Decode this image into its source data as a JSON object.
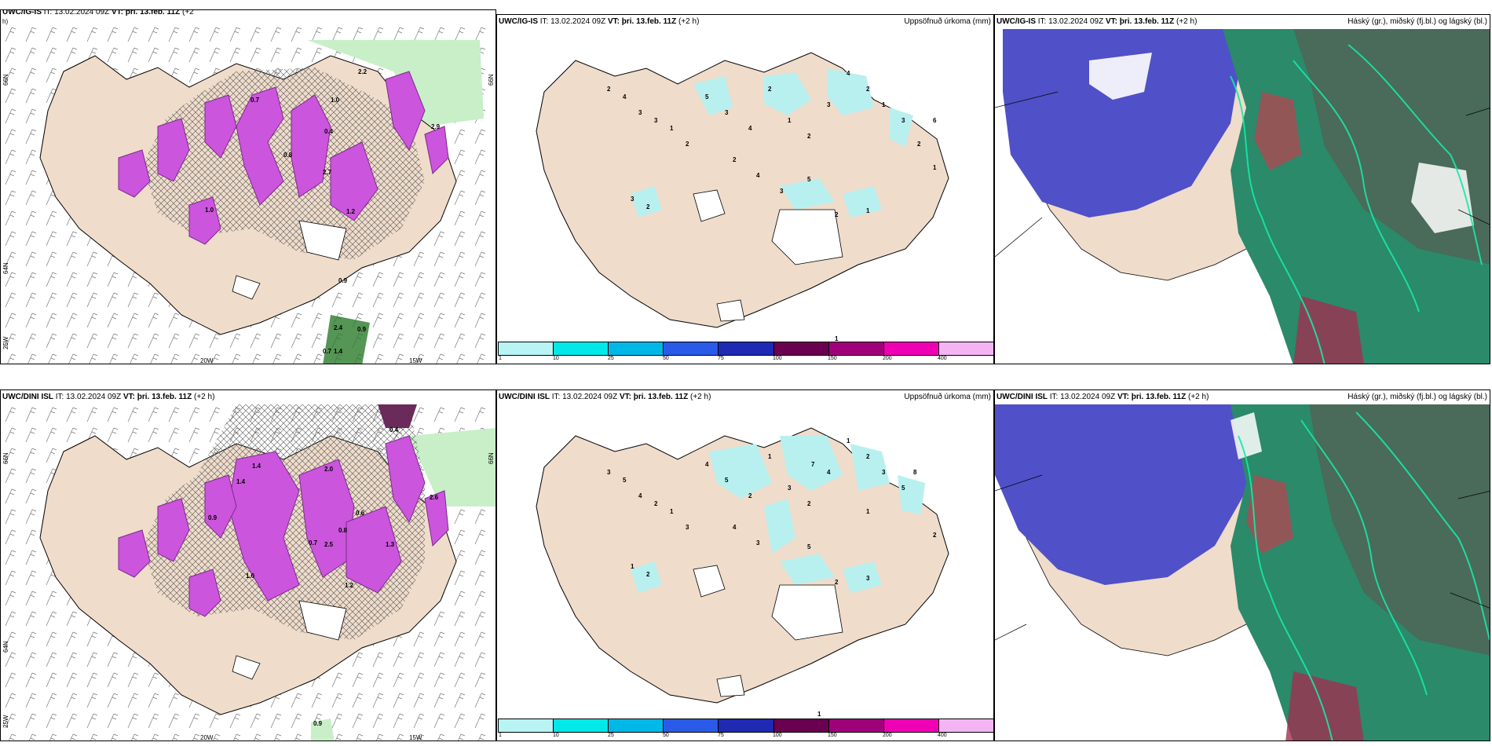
{
  "rows": [
    {
      "model": "UWC/IG-IS",
      "wind_header": {
        "model": "UWC/IG-IS",
        "it_label": "IT:",
        "it": "13.02.2024 09Z",
        "vt_label": "VT:",
        "vt": "þri. 13.feb. 11Z",
        "lead": "(+2",
        "lead2": "h)"
      },
      "precip_header": {
        "model": "UWC/IG-IS",
        "it_label": "IT:",
        "it": "13.02.2024 09Z",
        "vt_label": "VT:",
        "vt": "þri. 13.feb. 11Z",
        "lead": "(+2 h)",
        "right": "Uppsöfnuð úrkoma (mm)"
      },
      "cloud_header": {
        "model": "UWC/IG-IS",
        "it_label": "IT:",
        "it": "13.02.2024 09Z",
        "vt_label": "VT:",
        "vt": "þri. 13.feb. 11Z",
        "lead": "(+2 h)",
        "right": "Háský (gr.), miðský (fj.bl.) og lágský (bl.)"
      },
      "wind_values": [
        "2.2",
        "1.0",
        "2.7",
        "2.9",
        "0.8",
        "1.2",
        "1.0",
        "0.7",
        "0.4",
        "0.9",
        "2.4",
        "0.9",
        "0.7",
        "1.4"
      ],
      "precip_values": [
        "2",
        "4",
        "3",
        "3",
        "1",
        "2",
        "5",
        "3",
        "4",
        "2",
        "1",
        "2",
        "3",
        "4",
        "2",
        "1",
        "3",
        "2",
        "1",
        "6",
        "2",
        "4",
        "3",
        "5",
        "2",
        "1",
        "3",
        "2",
        "1"
      ]
    },
    {
      "model": "UWC/DINI ISL",
      "wind_header": {
        "model": "UWC/DINI ISL",
        "it_label": "IT:",
        "it": "13.02.2024 09Z",
        "vt_label": "VT:",
        "vt": "þri. 13.feb. 11Z",
        "lead": "(+2 h)"
      },
      "precip_header": {
        "model": "UWC/DINI ISL",
        "it_label": "IT:",
        "it": "13.02.2024 09Z",
        "vt_label": "VT:",
        "vt": "þri. 13.feb. 11Z",
        "lead": "(+2 h)",
        "right": "Uppsöfnuð úrkoma (mm)"
      },
      "cloud_header": {
        "model": "UWC/DINI ISL",
        "it_label": "IT:",
        "it": "13.02.2024 09Z",
        "vt_label": "VT:",
        "vt": "þri. 13.feb. 11Z",
        "lead": "(+2 h)",
        "right": "Háský (gr.), miðský (fj.bl.) og lágský (bl.)"
      },
      "wind_values": [
        "0.4",
        "1.4",
        "2.0",
        "2.5",
        "1.2",
        "0.6",
        "1.3",
        "0.9",
        "1.0",
        "1.4",
        "2.6",
        "0.7",
        "0.8",
        "0.9"
      ],
      "precip_values": [
        "3",
        "5",
        "4",
        "2",
        "1",
        "3",
        "4",
        "5",
        "2",
        "1",
        "3",
        "2",
        "4",
        "1",
        "2",
        "3",
        "5",
        "7",
        "2",
        "1",
        "4",
        "3",
        "8",
        "5",
        "2",
        "3",
        "1",
        "2",
        "1"
      ]
    }
  ],
  "axis_labels": {
    "lat_66": "66N",
    "lat_64": "64N",
    "lat_65": "65N",
    "lon_20": "20W",
    "lon_15": "15W",
    "lon_25": "25W"
  },
  "colorbar": {
    "ticks": [
      "1",
      "10",
      "25",
      "50",
      "75",
      "100",
      "150",
      "200",
      "400"
    ],
    "colors": [
      "#b8f4f4",
      "#00e8e8",
      "#00b8e8",
      "#2a5ae8",
      "#1e2ab4",
      "#6a0050",
      "#a0007a",
      "#f000b4",
      "#f4b4f4"
    ]
  },
  "colors": {
    "land": "#efdccb",
    "precip_light": "#b8f0f0",
    "snow_magenta": "#cc55dd",
    "low_cloud": "#5050c8",
    "mid_cloud": "#2a8a6a",
    "high_cloud": "#4a6a5a",
    "sea_green": "#b8e8b8"
  }
}
